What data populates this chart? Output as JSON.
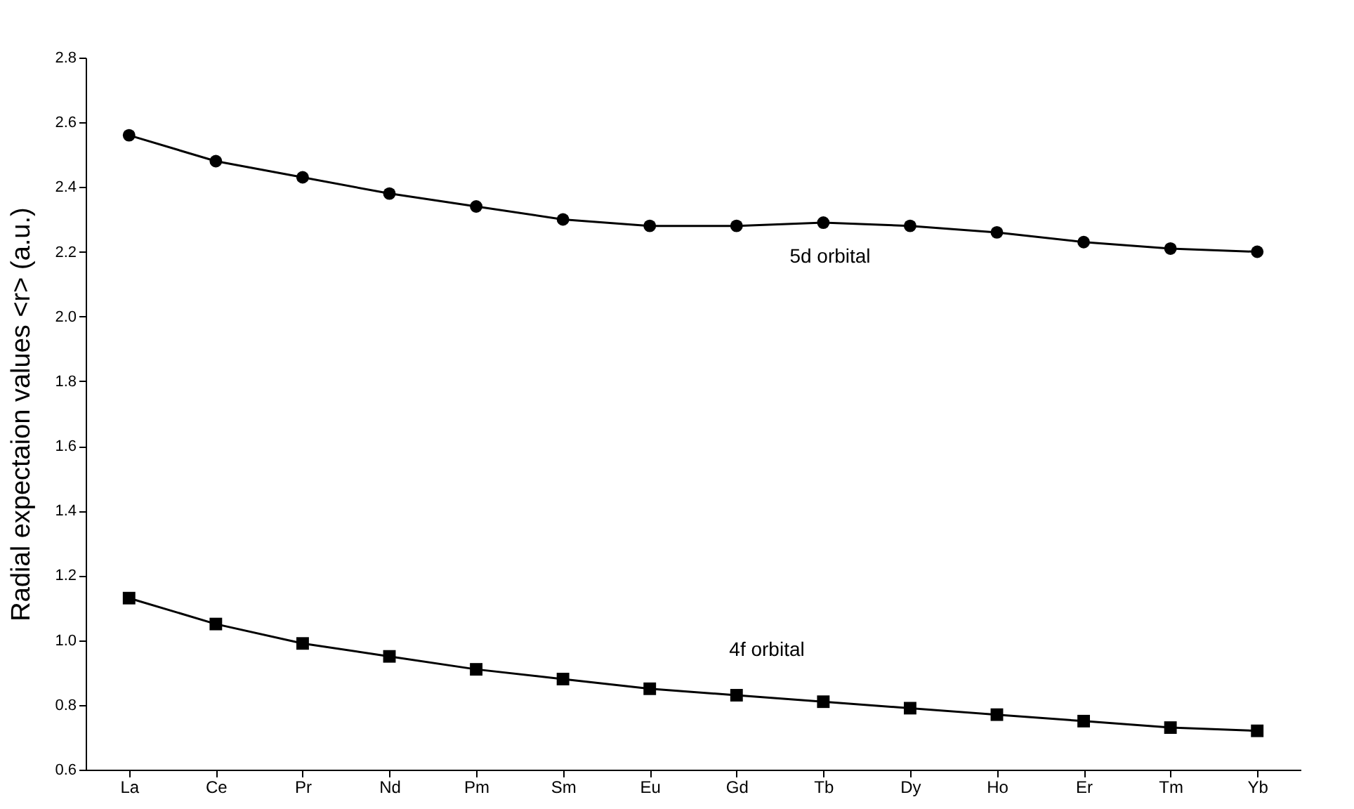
{
  "chart_data": {
    "type": "line",
    "ylabel": "Radial expectaion values <r> (a.u.)",
    "categories": [
      "La",
      "Ce",
      "Pr",
      "Nd",
      "Pm",
      "Sm",
      "Eu",
      "Gd",
      "Tb",
      "Dy",
      "Ho",
      "Er",
      "Tm",
      "Yb"
    ],
    "series": [
      {
        "color": "#000000",
        "marker": "circle",
        "values": [
          2.56,
          2.48,
          2.43,
          2.38,
          2.34,
          2.3,
          2.28,
          2.28,
          2.29,
          2.28,
          2.26,
          2.23,
          2.21,
          2.2
        ]
      },
      {
        "color": "#000000",
        "marker": "square",
        "values": [
          1.13,
          1.05,
          0.99,
          0.95,
          0.91,
          0.88,
          0.85,
          0.83,
          0.81,
          0.79,
          0.77,
          0.75,
          0.73,
          0.72
        ]
      }
    ],
    "annotations": [
      "5d orbital",
      "4f orbital"
    ],
    "ylim": [
      0.6,
      2.8
    ],
    "yticks": [
      0.6,
      0.8,
      {
        "value": 1,
        "label": "1.0"
      },
      1.2,
      1.4,
      1.6,
      1.8,
      {
        "value": 2,
        "label": "2.0"
      },
      2.2,
      2.4,
      2.6,
      2.8
    ],
    "grid": false,
    "line_style": "solid"
  }
}
